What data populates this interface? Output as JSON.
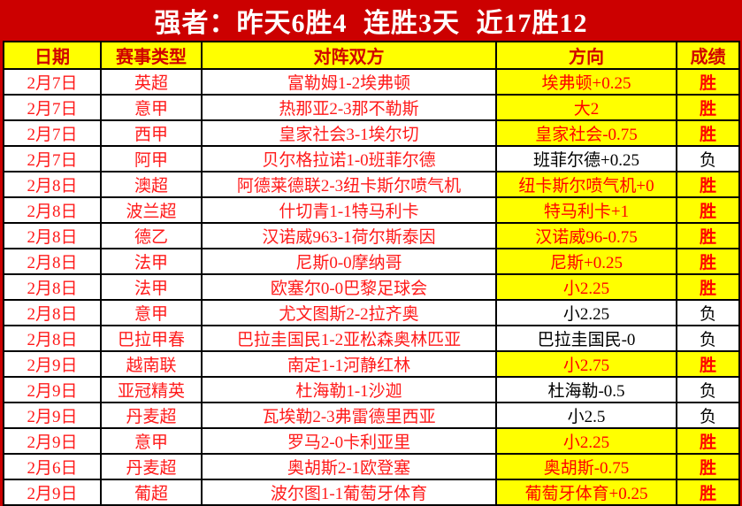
{
  "title_bar": {
    "text": "强者：昨天6胜4 连胜3天 近17胜12"
  },
  "labels": {
    "win": "胜",
    "loss": "负"
  },
  "colors": {
    "band_red": "#cc0000",
    "highlight_yellow": "#ffff00",
    "data_text_red": "#ff1a1a",
    "header_text_red": "#d10000",
    "loss_text_black": "#000000",
    "title_text_white": "#ffffff"
  },
  "chart_data": {
    "type": "table",
    "title": "强者：昨天6胜4 连胜3天 近17胜12",
    "columns": [
      "日期",
      "赛事类型",
      "对阵双方",
      "方向",
      "成绩"
    ],
    "rows": [
      {
        "date": "2月7日",
        "league": "英超",
        "match": "富勒姆1-2埃弗顿",
        "direction": "埃弗顿+0.25",
        "result": "胜",
        "win": true
      },
      {
        "date": "2月7日",
        "league": "意甲",
        "match": "热那亚2-3那不勒斯",
        "direction": "大2",
        "result": "胜",
        "win": true
      },
      {
        "date": "2月7日",
        "league": "西甲",
        "match": "皇家社会3-1埃尔切",
        "direction": "皇家社会-0.75",
        "result": "胜",
        "win": true
      },
      {
        "date": "2月7日",
        "league": "阿甲",
        "match": "贝尔格拉诺1-0班菲尔德",
        "direction": "班菲尔德+0.25",
        "result": "负",
        "win": false
      },
      {
        "date": "2月8日",
        "league": "澳超",
        "match": "阿德莱德联2-3纽卡斯尔喷气机",
        "direction": "纽卡斯尔喷气机+0",
        "result": "胜",
        "win": true
      },
      {
        "date": "2月8日",
        "league": "波兰超",
        "match": "什切青1-1特马利卡",
        "direction": "特马利卡+1",
        "result": "胜",
        "win": true
      },
      {
        "date": "2月8日",
        "league": "德乙",
        "match": "汉诺威963-1荷尔斯泰因",
        "direction": "汉诺威96-0.75",
        "result": "胜",
        "win": true
      },
      {
        "date": "2月8日",
        "league": "法甲",
        "match": "尼斯0-0摩纳哥",
        "direction": "尼斯+0.25",
        "result": "胜",
        "win": true
      },
      {
        "date": "2月8日",
        "league": "法甲",
        "match": "欧塞尔0-0巴黎足球会",
        "direction": "小2.25",
        "result": "胜",
        "win": true
      },
      {
        "date": "2月8日",
        "league": "意甲",
        "match": "尤文图斯2-2拉齐奥",
        "direction": "小2.25",
        "result": "负",
        "win": false
      },
      {
        "date": "2月8日",
        "league": "巴拉甲春",
        "match": "巴拉圭国民1-2亚松森奥林匹亚",
        "direction": "巴拉圭国民-0",
        "result": "负",
        "win": false
      },
      {
        "date": "2月9日",
        "league": "越南联",
        "match": "南定1-1河静红林",
        "direction": "小2.75",
        "result": "胜",
        "win": true
      },
      {
        "date": "2月9日",
        "league": "亚冠精英",
        "match": "杜海勒1-1沙迦",
        "direction": "杜海勒-0.5",
        "result": "负",
        "win": false
      },
      {
        "date": "2月9日",
        "league": "丹麦超",
        "match": "瓦埃勒2-3弗雷德里西亚",
        "direction": "小2.5",
        "result": "负",
        "win": false
      },
      {
        "date": "2月9日",
        "league": "意甲",
        "match": "罗马2-0卡利亚里",
        "direction": "小2.25",
        "result": "胜",
        "win": true
      },
      {
        "date": "2月6日",
        "league": "丹麦超",
        "match": "奥胡斯2-1欧登塞",
        "direction": "奥胡斯-0.75",
        "result": "胜",
        "win": true
      },
      {
        "date": "2月9日",
        "league": "葡超",
        "match": "波尔图1-1葡萄牙体育",
        "direction": "葡萄牙体育+0.25",
        "result": "胜",
        "win": true
      }
    ]
  }
}
